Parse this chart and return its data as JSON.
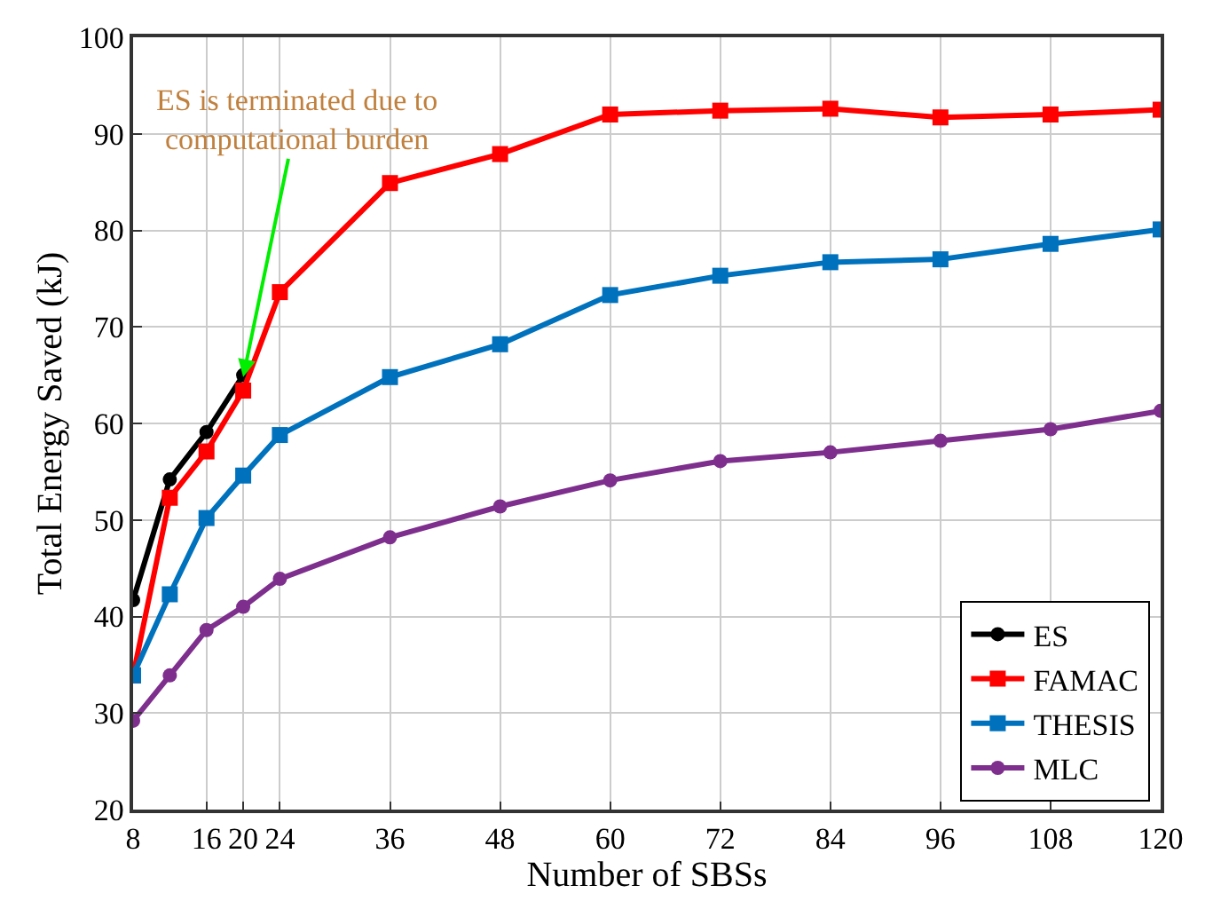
{
  "chart_data": {
    "type": "line",
    "xlabel": "Number of SBSs",
    "ylabel": "Total Energy Saved (kJ)",
    "x": [
      8,
      12,
      16,
      20,
      24,
      36,
      48,
      60,
      72,
      84,
      96,
      108,
      120
    ],
    "xlim": [
      8,
      120
    ],
    "xticks": [
      8,
      16,
      20,
      24,
      36,
      48,
      60,
      72,
      84,
      96,
      108,
      120
    ],
    "ylim": [
      20,
      100
    ],
    "yticks": [
      20,
      30,
      40,
      50,
      60,
      70,
      80,
      90,
      100
    ],
    "grid": true,
    "legend": "bottom right",
    "line_style": "solid",
    "annotations": [
      {
        "text": "ES is terminated due to\ncomputational burden",
        "x": 20,
        "y": 64.8
      }
    ],
    "series": [
      {
        "name": "ES",
        "color": "#000000",
        "marker": "circle",
        "x": [
          8,
          12,
          16,
          20
        ],
        "values": [
          41.7,
          54.2,
          59.1,
          65.0
        ]
      },
      {
        "name": "FAMAC",
        "color": "#ff0000",
        "marker": "square",
        "values": [
          33.9,
          52.3,
          57.1,
          63.4,
          73.6,
          84.9,
          87.9,
          92.0,
          92.4,
          92.6,
          91.7,
          92.0,
          92.5
        ]
      },
      {
        "name": "THESIS",
        "color": "#0072bd",
        "marker": "square",
        "values": [
          33.9,
          42.3,
          50.2,
          54.6,
          58.8,
          64.8,
          68.2,
          73.3,
          75.3,
          76.7,
          77.0,
          78.6,
          80.1
        ]
      },
      {
        "name": "MLC",
        "color": "#7e2f8e",
        "marker": "circle",
        "values": [
          29.2,
          33.9,
          38.6,
          41.0,
          43.9,
          48.2,
          51.4,
          54.1,
          56.1,
          57.0,
          58.2,
          59.4,
          61.3
        ]
      }
    ]
  }
}
